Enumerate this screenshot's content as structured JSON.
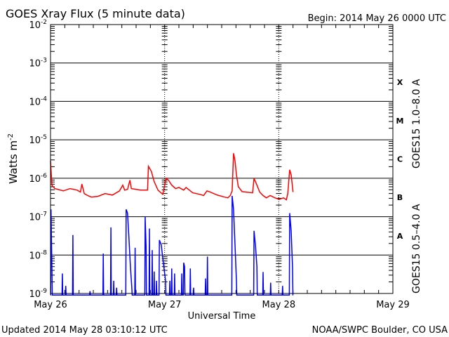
{
  "chart_data": {
    "type": "line",
    "title": "GOES Xray Flux (5 minute data)",
    "begin": "Begin:  2014 May 26 0000 UTC",
    "xlabel": "Universal Time",
    "ylabel": "Watts m",
    "ylabel_sup": "-2",
    "x_unit": "hours since 2014-05-26 00:00 UTC",
    "xlim": [
      0,
      72
    ],
    "ylim_log10": [
      -9,
      -2
    ],
    "y_scale": "log",
    "grid": true,
    "x_ticks": [
      {
        "hour": 0,
        "label": "May 26"
      },
      {
        "hour": 24,
        "label": "May 27"
      },
      {
        "hour": 48,
        "label": "May 28"
      },
      {
        "hour": 72,
        "label": "May 29"
      }
    ],
    "y_ticks": [
      {
        "exp": -2,
        "base": "10",
        "sup": "-2"
      },
      {
        "exp": -3,
        "base": "10",
        "sup": "-3"
      },
      {
        "exp": -4,
        "base": "10",
        "sup": "-4"
      },
      {
        "exp": -5,
        "base": "10",
        "sup": "-5"
      },
      {
        "exp": -6,
        "base": "10",
        "sup": "-6"
      },
      {
        "exp": -7,
        "base": "10",
        "sup": "-7"
      },
      {
        "exp": -8,
        "base": "10",
        "sup": "-8"
      },
      {
        "exp": -9,
        "base": "10",
        "sup": "-9"
      }
    ],
    "flare_classes": [
      {
        "label": "X",
        "exp": -4
      },
      {
        "label": "M",
        "exp": -5
      },
      {
        "label": "C",
        "exp": -6
      },
      {
        "label": "B",
        "exp": -7
      },
      {
        "label": "A",
        "exp": -8
      }
    ],
    "series": [
      {
        "name": "GOES15 1.0–8.0 A",
        "color": "#ff0000",
        "points_hour_log10": [
          [
            0,
            -5.55
          ],
          [
            0.3,
            -6.18
          ],
          [
            0.9,
            -6.27
          ],
          [
            2.7,
            -6.33
          ],
          [
            4.1,
            -6.27
          ],
          [
            5.6,
            -6.31
          ],
          [
            6.3,
            -6.36
          ],
          [
            6.6,
            -6.15
          ],
          [
            7.1,
            -6.4
          ],
          [
            7.8,
            -6.45
          ],
          [
            8.6,
            -6.49
          ],
          [
            10.0,
            -6.47
          ],
          [
            11.5,
            -6.4
          ],
          [
            13.0,
            -6.44
          ],
          [
            14.5,
            -6.33
          ],
          [
            15.2,
            -6.18
          ],
          [
            15.6,
            -6.31
          ],
          [
            16.2,
            -6.29
          ],
          [
            16.7,
            -6.05
          ],
          [
            17.0,
            -6.27
          ],
          [
            18.9,
            -6.31
          ],
          [
            20.4,
            -6.31
          ],
          [
            20.6,
            -5.69
          ],
          [
            21.2,
            -5.82
          ],
          [
            21.8,
            -6.09
          ],
          [
            22.6,
            -6.31
          ],
          [
            23.6,
            -6.42
          ],
          [
            24.0,
            -6.18
          ],
          [
            24.3,
            -6.0
          ],
          [
            24.8,
            -6.05
          ],
          [
            25.5,
            -6.18
          ],
          [
            26.3,
            -6.27
          ],
          [
            27.0,
            -6.24
          ],
          [
            28.0,
            -6.31
          ],
          [
            28.5,
            -6.24
          ],
          [
            29.2,
            -6.31
          ],
          [
            29.9,
            -6.38
          ],
          [
            31.4,
            -6.42
          ],
          [
            32.2,
            -6.45
          ],
          [
            32.9,
            -6.33
          ],
          [
            33.6,
            -6.36
          ],
          [
            35.1,
            -6.44
          ],
          [
            36.6,
            -6.49
          ],
          [
            37.3,
            -6.51
          ],
          [
            37.8,
            -6.45
          ],
          [
            38.2,
            -6.33
          ],
          [
            38.5,
            -5.35
          ],
          [
            38.8,
            -5.55
          ],
          [
            39.1,
            -5.91
          ],
          [
            39.5,
            -6.22
          ],
          [
            40.3,
            -6.35
          ],
          [
            42.5,
            -6.38
          ],
          [
            42.8,
            -6.0
          ],
          [
            43.4,
            -6.18
          ],
          [
            44.0,
            -6.36
          ],
          [
            44.7,
            -6.45
          ],
          [
            45.4,
            -6.51
          ],
          [
            46.2,
            -6.45
          ],
          [
            47.2,
            -6.51
          ],
          [
            48.1,
            -6.55
          ],
          [
            49.0,
            -6.51
          ],
          [
            49.6,
            -6.56
          ],
          [
            49.9,
            -6.4
          ],
          [
            50.3,
            -5.78
          ],
          [
            50.6,
            -5.91
          ],
          [
            51.0,
            -6.36
          ]
        ]
      },
      {
        "name": "GOES15 0.5–4.0 A",
        "color": "#0000ff",
        "baseline_log10": -9.05,
        "events_hour_log10": [
          [
            [
              0.1,
              -6.81
            ],
            [
              0.3,
              -8.35
            ]
          ],
          [
            [
              2.5,
              -8.48
            ]
          ],
          [
            [
              3.2,
              -8.8
            ]
          ],
          [
            [
              4.7,
              -7.48
            ]
          ],
          [
            [
              8.3,
              -8.94
            ]
          ],
          [
            [
              11.1,
              -7.96
            ]
          ],
          [
            [
              12.7,
              -7.28
            ]
          ],
          [
            [
              13.3,
              -8.67
            ]
          ],
          [
            [
              13.9,
              -8.85
            ]
          ],
          [
            [
              15.9,
              -6.81
            ],
            [
              16.2,
              -6.91
            ],
            [
              16.5,
              -7.56
            ],
            [
              16.8,
              -8.3
            ],
            [
              17.1,
              -8.85
            ]
          ],
          [
            [
              17.8,
              -7.81
            ]
          ],
          [
            [
              19.9,
              -7.0
            ],
            [
              20.1,
              -7.78
            ]
          ],
          [
            [
              20.8,
              -7.31
            ]
          ],
          [
            [
              21.4,
              -7.87
            ]
          ],
          [
            [
              21.8,
              -8.43
            ]
          ],
          [
            [
              22.3,
              -8.67
            ]
          ],
          [
            [
              22.9,
              -7.61
            ],
            [
              23.3,
              -7.74
            ],
            [
              23.7,
              -8.17
            ],
            [
              24.2,
              -8.67
            ]
          ],
          [
            [
              25.1,
              -8.67
            ]
          ],
          [
            [
              25.5,
              -8.35
            ]
          ],
          [
            [
              26.1,
              -8.48
            ]
          ],
          [
            [
              27.6,
              -8.48
            ]
          ],
          [
            [
              28.0,
              -8.2
            ],
            [
              28.2,
              -8.3
            ]
          ],
          [
            [
              29.4,
              -8.35
            ]
          ],
          [
            [
              30.1,
              -8.85
            ]
          ],
          [
            [
              32.6,
              -8.61
            ]
          ],
          [
            [
              33.0,
              -8.04
            ]
          ],
          [
            [
              38.2,
              -6.46
            ],
            [
              38.5,
              -6.81
            ],
            [
              38.8,
              -7.74
            ],
            [
              39.1,
              -8.67
            ]
          ],
          [
            [
              42.8,
              -7.37
            ],
            [
              43.1,
              -7.74
            ],
            [
              43.4,
              -8.3
            ]
          ],
          [
            [
              44.7,
              -8.44
            ]
          ],
          [
            [
              46.3,
              -8.72
            ]
          ],
          [
            [
              48.8,
              -8.8
            ]
          ],
          [
            [
              50.3,
              -6.91
            ],
            [
              50.6,
              -7.37
            ],
            [
              50.9,
              -8.33
            ]
          ]
        ]
      }
    ]
  },
  "footer": {
    "updated": "Updated 2014 May 28 03:10:12 UTC",
    "credit": "NOAA/SWPC Boulder, CO USA"
  }
}
